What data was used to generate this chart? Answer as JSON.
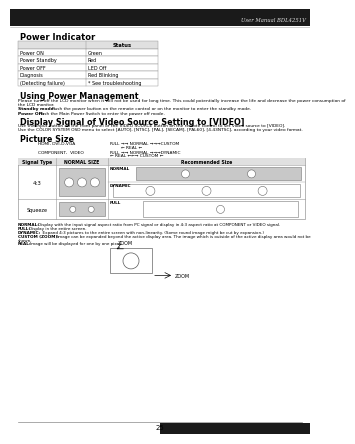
{
  "page_num": "25",
  "header_right": "User Manual BDL4251V",
  "bg_color": "#ffffff",
  "section1_title": "Power Indicator",
  "table_headers": [
    "",
    "Status"
  ],
  "table_rows": [
    [
      "Power ON",
      "Green"
    ],
    [
      "Power Standby",
      "Red"
    ],
    [
      "Power OFF",
      "LED Off"
    ],
    [
      "Diagnosis",
      "Red Blinking"
    ],
    [
      "(Detecting failure)",
      "* See troubleshooting"
    ]
  ],
  "section2_title": "Using Power Management",
  "section3_title": "Display Signal of Video Source Setting to [VIDEO]",
  "section4_title": "Picture Size",
  "table2_col0": "Signal Type",
  "table2_col1": "NORMAL SIZE",
  "table2_col2": "Recommended Size",
  "normal_label": "NORMAL",
  "dynamic_label": "DYNAMIC",
  "full_label": "FULL",
  "zoom_label": "ZOOM",
  "text_color": "#000000",
  "table_border_color": "#999999",
  "gray_bg": "#c8c8c8",
  "header_bg": "#e0e0e0"
}
